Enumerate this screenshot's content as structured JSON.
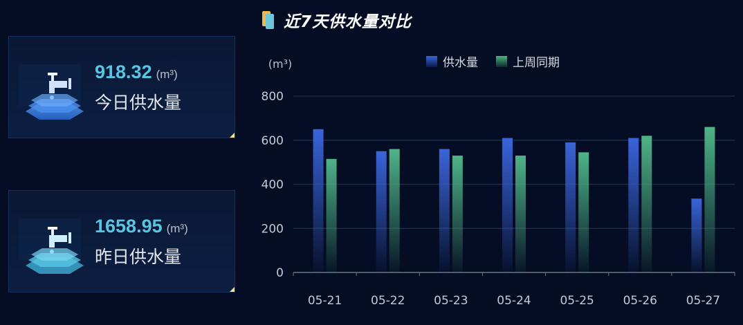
{
  "title": "近7天供水量对比",
  "cards": [
    {
      "value": "918.32",
      "unit": "(m³)",
      "label": "今日供水量",
      "icon": "faucet-icon",
      "color": "#3f86e8"
    },
    {
      "value": "1658.95",
      "unit": "(m³)",
      "label": "昨日供水量",
      "icon": "faucet-icon",
      "color": "#4cc0e0"
    }
  ],
  "chart_data": {
    "type": "bar",
    "ylabel": "(m³)",
    "ylim": [
      0,
      800
    ],
    "yticks": [
      0,
      200,
      400,
      600,
      800
    ],
    "grid": true,
    "legend_position": "top-right",
    "categories": [
      "05-21",
      "05-22",
      "05-23",
      "05-24",
      "05-25",
      "05-26",
      "05-27"
    ],
    "series": [
      {
        "name": "供水量",
        "color": "#3a64d8",
        "values": [
          650,
          550,
          560,
          610,
          590,
          610,
          335
        ]
      },
      {
        "name": "上周同期",
        "color": "#4fb487",
        "values": [
          515,
          560,
          530,
          530,
          545,
          620,
          660
        ]
      }
    ]
  }
}
